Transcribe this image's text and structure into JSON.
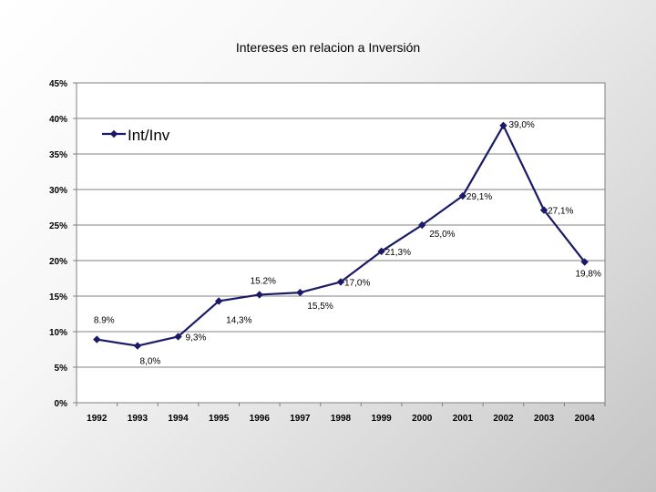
{
  "chart_data": {
    "type": "line",
    "title": "Intereses en relacion a Inversión",
    "xlabel": "",
    "ylabel": "",
    "ylim": [
      0,
      45
    ],
    "y_ticks": [
      "0%",
      "5%",
      "10%",
      "15%",
      "20%",
      "25%",
      "30%",
      "35%",
      "40%",
      "45%"
    ],
    "categories": [
      "1992",
      "1993",
      "1994",
      "1995",
      "1996",
      "1997",
      "1998",
      "1999",
      "2000",
      "2001",
      "2002",
      "2003",
      "2004"
    ],
    "grid": true,
    "legend": "top-left",
    "series": [
      {
        "name": "Int/Inv",
        "color": "#1a1a66",
        "values": [
          8.9,
          8.0,
          9.3,
          14.3,
          15.2,
          15.5,
          17.0,
          21.3,
          25.0,
          29.1,
          39.0,
          27.1,
          19.8
        ],
        "labels": [
          "8.9%",
          "8,0%",
          "9,3%",
          "14,3%",
          "15.2%",
          "15,5%",
          "17,0%",
          "21,3%",
          "25,0%",
          "29,1%",
          "39,0%",
          "27,1%",
          "19,8%"
        ]
      }
    ]
  }
}
